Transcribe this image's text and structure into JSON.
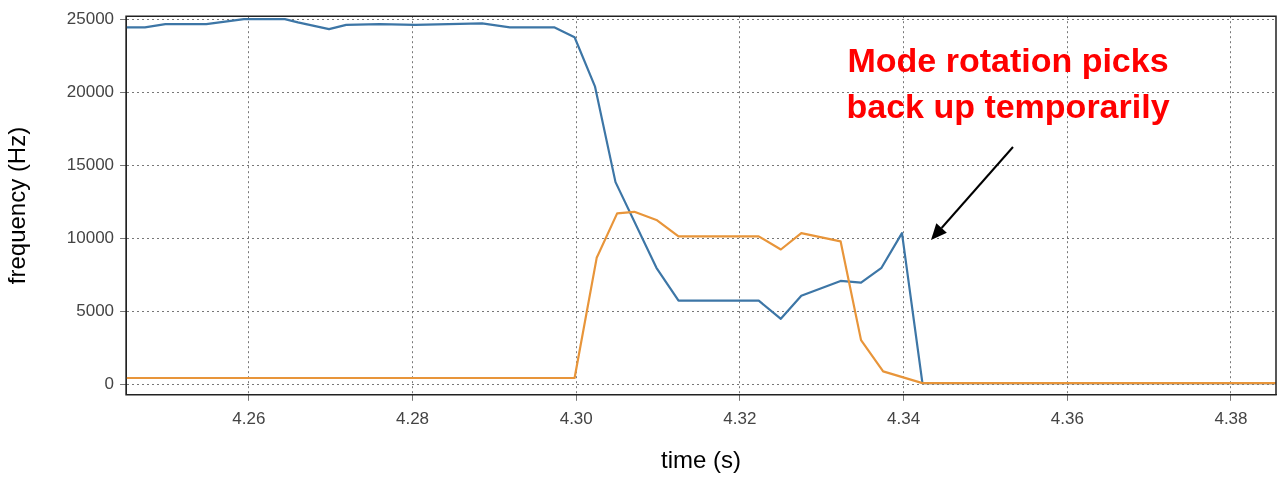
{
  "chart_data": {
    "type": "line",
    "xlabel": "time (s)",
    "ylabel": "frequency (Hz)",
    "xlim": [
      4.245,
      4.3855
    ],
    "xticks": [
      4.26,
      4.28,
      {
        "value": 4.3,
        "label": "4.30"
      },
      4.32,
      4.34,
      4.36,
      4.38
    ],
    "ylim": [
      -700,
      25200
    ],
    "yticks": [
      0,
      5000,
      10000,
      15000,
      20000,
      25000
    ],
    "grid": true,
    "legend": false,
    "marker": "none",
    "line_style": "solid",
    "series": [
      {
        "color": "#3d76a6",
        "x": [
          4.245,
          4.2473,
          4.2498,
          4.2548,
          4.2594,
          4.2644,
          4.266,
          4.2698,
          4.2719,
          4.276,
          4.2803,
          4.2885,
          4.2919,
          4.2973,
          4.2998,
          4.3023,
          4.3048,
          4.3098,
          4.3125,
          4.3223,
          4.325,
          4.3275,
          4.3323,
          4.3348,
          4.3373,
          4.3398,
          4.3423,
          4.3855
        ],
        "values": [
          24440,
          24440,
          24660,
          24660,
          25000,
          25000,
          24780,
          24320,
          24610,
          24660,
          24610,
          24710,
          24440,
          24440,
          23760,
          20380,
          13850,
          7990,
          5740,
          5740,
          4500,
          6080,
          7090,
          6980,
          7990,
          10360,
          100,
          100
        ]
      },
      {
        "color": "#e8953a",
        "x": [
          4.245,
          4.2998,
          4.3025,
          4.305,
          4.3071,
          4.3098,
          4.3125,
          4.3223,
          4.325,
          4.3275,
          4.3323,
          4.3348,
          4.3375,
          4.3423,
          4.3855
        ],
        "values": [
          450,
          450,
          8670,
          11710,
          11820,
          11260,
          10140,
          10140,
          9240,
          10360,
          9800,
          3040,
          900,
          100,
          100
        ]
      }
    ],
    "annotations": [
      "Mode rotation picks back up temporarily"
    ]
  }
}
